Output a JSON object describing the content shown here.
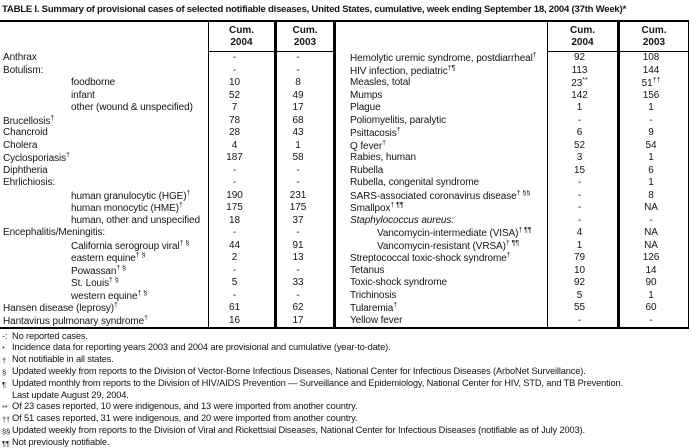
{
  "title": "TABLE I. Summary of provisional cases of selected notifiable diseases, United States, cumulative, week ending September 18, 2004 (37th Week)*",
  "columns": {
    "cum2004": [
      "Cum.",
      "2004"
    ],
    "cum2003": [
      "Cum.",
      "2003"
    ]
  },
  "no_cases_symbol": "-",
  "left_rows": [
    {
      "label": "Anthrax",
      "c04": "-",
      "c03": "-"
    },
    {
      "label": "Botulism:",
      "c04": "-",
      "c03": "-"
    },
    {
      "label": "foodborne",
      "indent": true,
      "c04": "10",
      "c03": "8"
    },
    {
      "label": "infant",
      "indent": true,
      "c04": "52",
      "c03": "49"
    },
    {
      "label": "other (wound & unspecified)",
      "indent": true,
      "c04": "7",
      "c03": "17"
    },
    {
      "label": "Brucellosis",
      "sup": "†",
      "c04": "78",
      "c03": "68"
    },
    {
      "label": "Chancroid",
      "c04": "28",
      "c03": "43"
    },
    {
      "label": "Cholera",
      "c04": "4",
      "c03": "1"
    },
    {
      "label": "Cyclosporiasis",
      "sup": "†",
      "c04": "187",
      "c03": "58"
    },
    {
      "label": "Diphtheria",
      "c04": "-",
      "c03": "-"
    },
    {
      "label": "Ehrlichiosis:",
      "c04": "-",
      "c03": "-"
    },
    {
      "label": "human granulocytic (HGE)",
      "sup": "†",
      "indent": true,
      "c04": "190",
      "c03": "231"
    },
    {
      "label": "human monocytic (HME)",
      "sup": "†",
      "indent": true,
      "c04": "175",
      "c03": "175"
    },
    {
      "label": "human, other and unspecified",
      "indent": true,
      "c04": "18",
      "c03": "37"
    },
    {
      "label": "Encephalitis/Meningitis:",
      "c04": "-",
      "c03": "-"
    },
    {
      "label": "California serogroup viral",
      "sup": "† §",
      "indent": true,
      "c04": "44",
      "c03": "91"
    },
    {
      "label": "eastern equine",
      "sup": "† §",
      "indent": true,
      "c04": "2",
      "c03": "13"
    },
    {
      "label": "Powassan",
      "sup": "† §",
      "indent": true,
      "c04": "-",
      "c03": "-"
    },
    {
      "label": "St. Louis",
      "sup": "† §",
      "indent": true,
      "c04": "5",
      "c03": "33"
    },
    {
      "label": "western equine",
      "sup": "† §",
      "indent": true,
      "c04": "-",
      "c03": "-"
    },
    {
      "label": "Hansen disease (leprosy)",
      "sup": "†",
      "c04": "61",
      "c03": "62"
    },
    {
      "label": "Hantavirus pulmonary syndrome",
      "sup": "†",
      "c04": "16",
      "c03": "17"
    }
  ],
  "right_rows": [
    {
      "label": "Hemolytic uremic syndrome, postdiarrheal",
      "sup": "†",
      "c04": "92",
      "c03": "108"
    },
    {
      "label": "HIV infection, pediatric",
      "sup": "†¶",
      "c04": "113",
      "c03": "144"
    },
    {
      "label": "Measles, total",
      "c04": "23",
      "c04s": "**",
      "c03": "51",
      "c03s": "††"
    },
    {
      "label": "Mumps",
      "c04": "142",
      "c03": "156"
    },
    {
      "label": "Plague",
      "c04": "1",
      "c03": "1"
    },
    {
      "label": "Poliomyelitis, paralytic",
      "c04": "-",
      "c03": "-"
    },
    {
      "label": "Psittacosis",
      "sup": "†",
      "c04": "6",
      "c03": "9"
    },
    {
      "label": "Q fever",
      "sup": "†",
      "c04": "52",
      "c03": "54"
    },
    {
      "label": "Rabies, human",
      "c04": "3",
      "c03": "1"
    },
    {
      "label": "Rubella",
      "c04": "15",
      "c03": "6"
    },
    {
      "label": "Rubella, congenital syndrome",
      "c04": "-",
      "c03": "1"
    },
    {
      "label": "SARS-associated coronavirus disease",
      "sup": "† §§",
      "c04": "-",
      "c03": "8"
    },
    {
      "label": "Smallpox",
      "sup": "† ¶¶",
      "c04": "-",
      "c03": "NA"
    },
    {
      "label": "Staphylococcus aureus:",
      "italic": true,
      "c04": "-",
      "c03": "-"
    },
    {
      "label": "Vancomycin-intermediate (VISA)",
      "sup": "† ¶¶",
      "indent": true,
      "c04": "4",
      "c03": "NA"
    },
    {
      "label": "Vancomycin-resistant (VRSA)",
      "sup": "† ¶¶",
      "indent": true,
      "c04": "1",
      "c03": "NA"
    },
    {
      "label": "Streptococcal toxic-shock syndrome",
      "sup": "†",
      "c04": "79",
      "c03": "126"
    },
    {
      "label": "Tetanus",
      "c04": "10",
      "c03": "14"
    },
    {
      "label": "Toxic-shock syndrome",
      "c04": "92",
      "c03": "90"
    },
    {
      "label": "Trichinosis",
      "c04": "5",
      "c03": "1"
    },
    {
      "label": "Tularemia",
      "sup": "†",
      "c04": "55",
      "c03": "60"
    },
    {
      "label": "Yellow fever",
      "c04": "-",
      "c03": "-"
    }
  ],
  "footnotes": [
    {
      "marker": "-:",
      "plain": true,
      "text": "No reported cases."
    },
    {
      "marker": "*",
      "text": "Incidence data for reporting years 2003 and 2004 are provisional and cumulative (year-to-date)."
    },
    {
      "marker": "†",
      "text": "Not notifiable in all states."
    },
    {
      "marker": "§",
      "text": "Updated weekly from reports to the Division of Vector-Borne Infectious Diseases, National Center for Infectious Diseases (ArboNet Surveillance)."
    },
    {
      "marker": "¶",
      "text": "Updated monthly from reports to the Division of HIV/AIDS Prevention — Surveillance and Epidemiology, National Center for HIV, STD, and TB Prevention."
    },
    {
      "marker": "",
      "cont": true,
      "text": "Last update August 29, 2004."
    },
    {
      "marker": "**",
      "text": "Of 23 cases reported, 10 were indigenous, and 13 were imported from another country."
    },
    {
      "marker": "††",
      "text": "Of 51 cases reported, 31 were indigenous, and 20 were imported from another country."
    },
    {
      "marker": "§§",
      "text": "Updated weekly from reports to the Division of Viral and Rickettsial Diseases, National Center for Infectious Diseases (notifiable as of July 2003)."
    },
    {
      "marker": "¶¶",
      "text": "Not previously notifiable."
    }
  ]
}
